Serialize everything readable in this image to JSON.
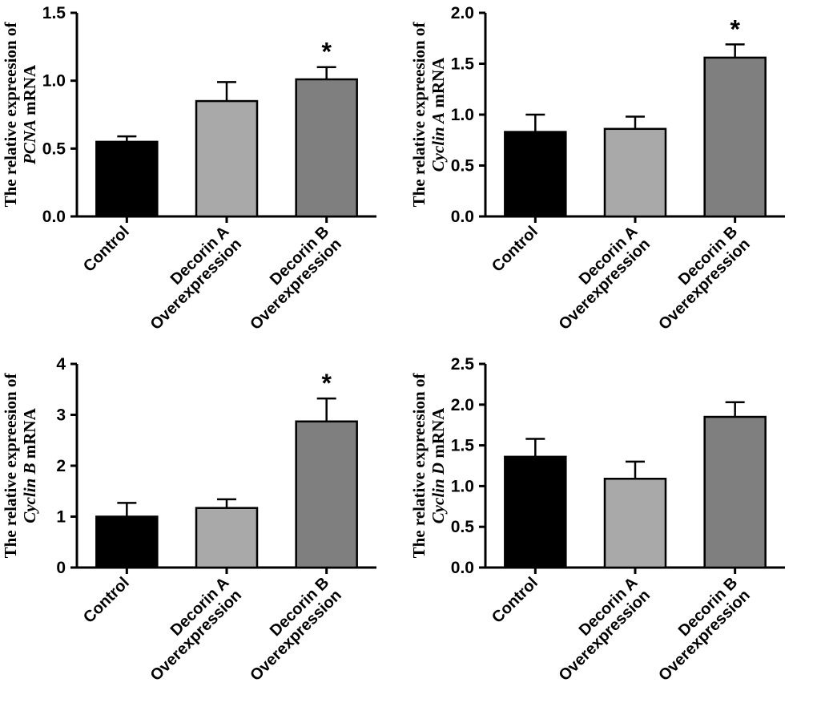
{
  "figure": {
    "background": "#ffffff",
    "axis_color": "#000000",
    "significance_symbol": "*"
  },
  "chart_data": [
    {
      "type": "bar",
      "ylabel_prefix": "The relative expreesion of",
      "gene": "PCNA",
      "ylabel_suffix": "mRNA",
      "categories": [
        [
          "Control"
        ],
        [
          "Decorin A",
          "Overexpression"
        ],
        [
          "Decorin B",
          "Overexpression"
        ]
      ],
      "values": [
        0.55,
        0.85,
        1.01
      ],
      "errors": [
        0.04,
        0.14,
        0.09
      ],
      "significance": [
        "",
        "",
        "*"
      ],
      "ylim": [
        0,
        1.5
      ],
      "ytick_values": [
        0,
        0.5,
        1.0,
        1.5
      ],
      "ytick_labels": [
        "0.0",
        "0.5",
        "1.0",
        "1.5"
      ],
      "bar_colors": [
        "#000000",
        "#a9a9a9",
        "#7f7f7f"
      ]
    },
    {
      "type": "bar",
      "ylabel_prefix": "The relative expreesion of",
      "gene": "Cyclin A",
      "ylabel_suffix": "mRNA",
      "categories": [
        [
          "Control"
        ],
        [
          "Decorin A",
          "Overexpression"
        ],
        [
          "Decorin B",
          "Overexpression"
        ]
      ],
      "values": [
        0.83,
        0.86,
        1.56
      ],
      "errors": [
        0.17,
        0.12,
        0.13
      ],
      "significance": [
        "",
        "",
        "*"
      ],
      "ylim": [
        0,
        2.0
      ],
      "ytick_values": [
        0,
        0.5,
        1.0,
        1.5,
        2.0
      ],
      "ytick_labels": [
        "0.0",
        "0.5",
        "1.0",
        "1.5",
        "2.0"
      ],
      "bar_colors": [
        "#000000",
        "#a9a9a9",
        "#7f7f7f"
      ]
    },
    {
      "type": "bar",
      "ylabel_prefix": "The relative expreesion of",
      "gene": "Cyclin B",
      "ylabel_suffix": "mRNA",
      "categories": [
        [
          "Control"
        ],
        [
          "Decorin A",
          "Overexpression"
        ],
        [
          "Decorin B",
          "Overexpression"
        ]
      ],
      "values": [
        1.0,
        1.17,
        2.87
      ],
      "errors": [
        0.27,
        0.17,
        0.45
      ],
      "significance": [
        "",
        "",
        "*"
      ],
      "ylim": [
        0,
        4
      ],
      "ytick_values": [
        0,
        1,
        2,
        3,
        4
      ],
      "ytick_labels": [
        "0",
        "1",
        "2",
        "3",
        "4"
      ],
      "bar_colors": [
        "#000000",
        "#a9a9a9",
        "#7f7f7f"
      ]
    },
    {
      "type": "bar",
      "ylabel_prefix": "The relative expreesion of",
      "gene": "Cyclin D",
      "ylabel_suffix": "mRNA",
      "categories": [
        [
          "Control"
        ],
        [
          "Decorin A",
          "Overexpression"
        ],
        [
          "Decorin B",
          "Overexpression"
        ]
      ],
      "values": [
        1.36,
        1.09,
        1.85
      ],
      "errors": [
        0.22,
        0.21,
        0.18
      ],
      "significance": [
        "",
        "",
        ""
      ],
      "ylim": [
        0,
        2.5
      ],
      "ytick_values": [
        0,
        0.5,
        1.0,
        1.5,
        2.0,
        2.5
      ],
      "ytick_labels": [
        "0.0",
        "0.5",
        "1.0",
        "1.5",
        "2.0",
        "2.5"
      ],
      "bar_colors": [
        "#000000",
        "#a9a9a9",
        "#7f7f7f"
      ]
    }
  ]
}
